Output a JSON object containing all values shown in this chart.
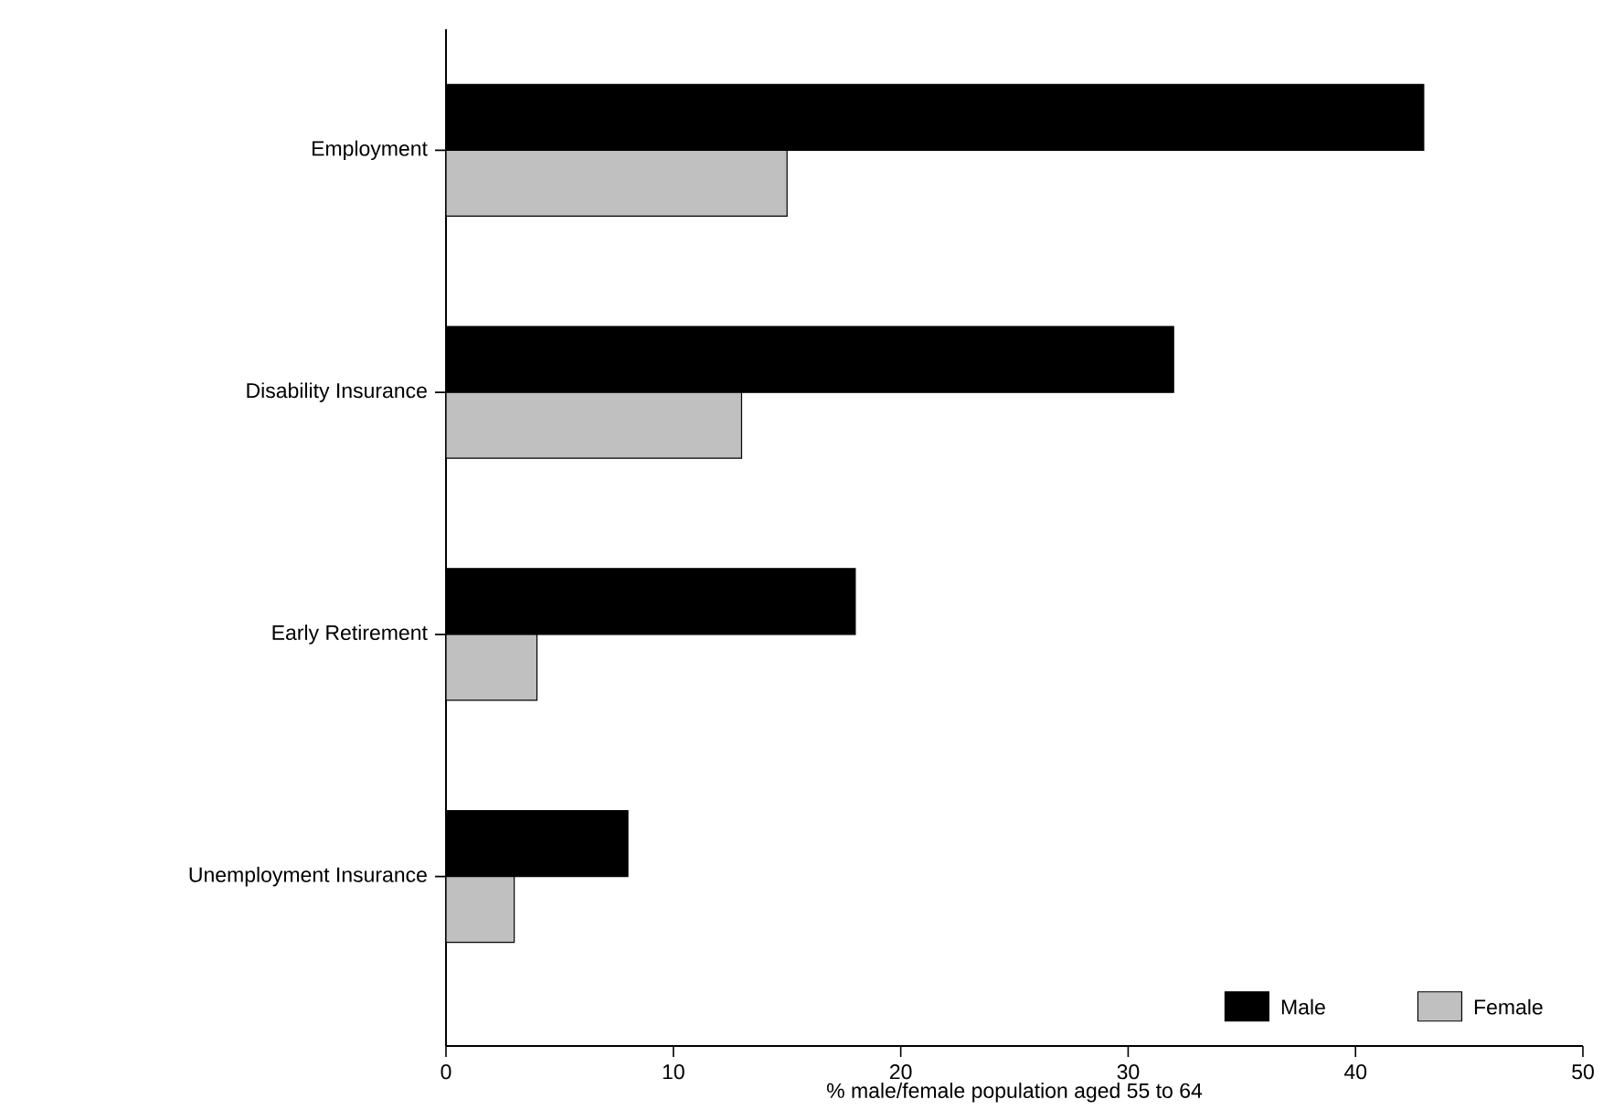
{
  "chart_data": {
    "type": "bar",
    "orientation": "horizontal",
    "xlabel": "% male/female population aged 55 to 64",
    "categories": [
      "Employment",
      "Disability Insurance",
      "Early Retirement",
      "Unemployment Insurance"
    ],
    "series": [
      {
        "name": "Male",
        "color": "#000000",
        "values": [
          43,
          32,
          18,
          8
        ]
      },
      {
        "name": "Female",
        "color": "#c0c0c0",
        "values": [
          15,
          13,
          4,
          3
        ]
      }
    ],
    "xlim": [
      0,
      50
    ],
    "xticks": [
      0,
      10,
      20,
      30,
      40,
      50
    ],
    "grid": false,
    "legend": "bottom right"
  }
}
